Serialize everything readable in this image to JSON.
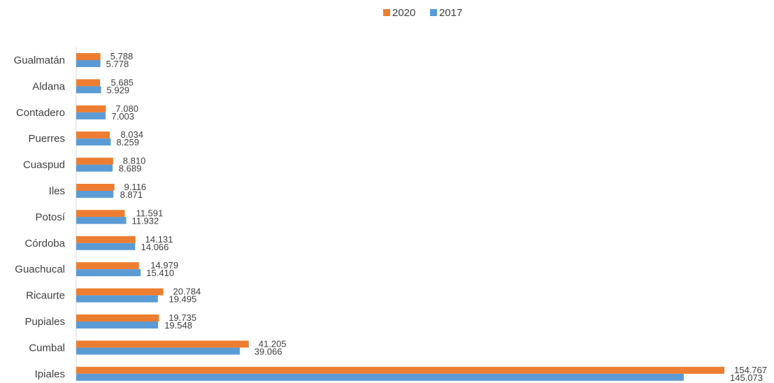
{
  "chart_data": {
    "type": "bar",
    "orientation": "horizontal",
    "categories": [
      "Gualmatán",
      "Aldana",
      "Contadero",
      "Puerres",
      "Cuaspud",
      "Iles",
      "Potosí",
      "Córdoba",
      "Guachucal",
      "Ricaurte",
      "Pupiales",
      "Cumbal",
      "Ipiales"
    ],
    "series": [
      {
        "name": "2020",
        "color": "#ED7D31",
        "values": [
          5788,
          5685,
          7080,
          8034,
          8810,
          9116,
          11591,
          14131,
          14979,
          20784,
          19735,
          41205,
          154767
        ],
        "labels": [
          "5.788",
          "5.685",
          "7.080",
          "8.034",
          "8.810",
          "9.116",
          "11.591",
          "14.131",
          "14.979",
          "20.784",
          "19.735",
          "41.205",
          "154.767"
        ]
      },
      {
        "name": "2017",
        "color": "#5B9BD5",
        "values": [
          5778,
          5929,
          7003,
          8259,
          8689,
          8871,
          11932,
          14066,
          15410,
          19495,
          19548,
          39066,
          145073
        ],
        "labels": [
          "5.778",
          "5.929",
          "7.003",
          "8.259",
          "8.689",
          "8.871",
          "11.932",
          "14.066",
          "15.410",
          "19.495",
          "19.548",
          "39.066",
          "145.073"
        ]
      }
    ],
    "xlim": [
      0,
      160000
    ],
    "title": "",
    "xlabel": "",
    "ylabel": "",
    "grid": false,
    "legend_position": "top-center"
  }
}
